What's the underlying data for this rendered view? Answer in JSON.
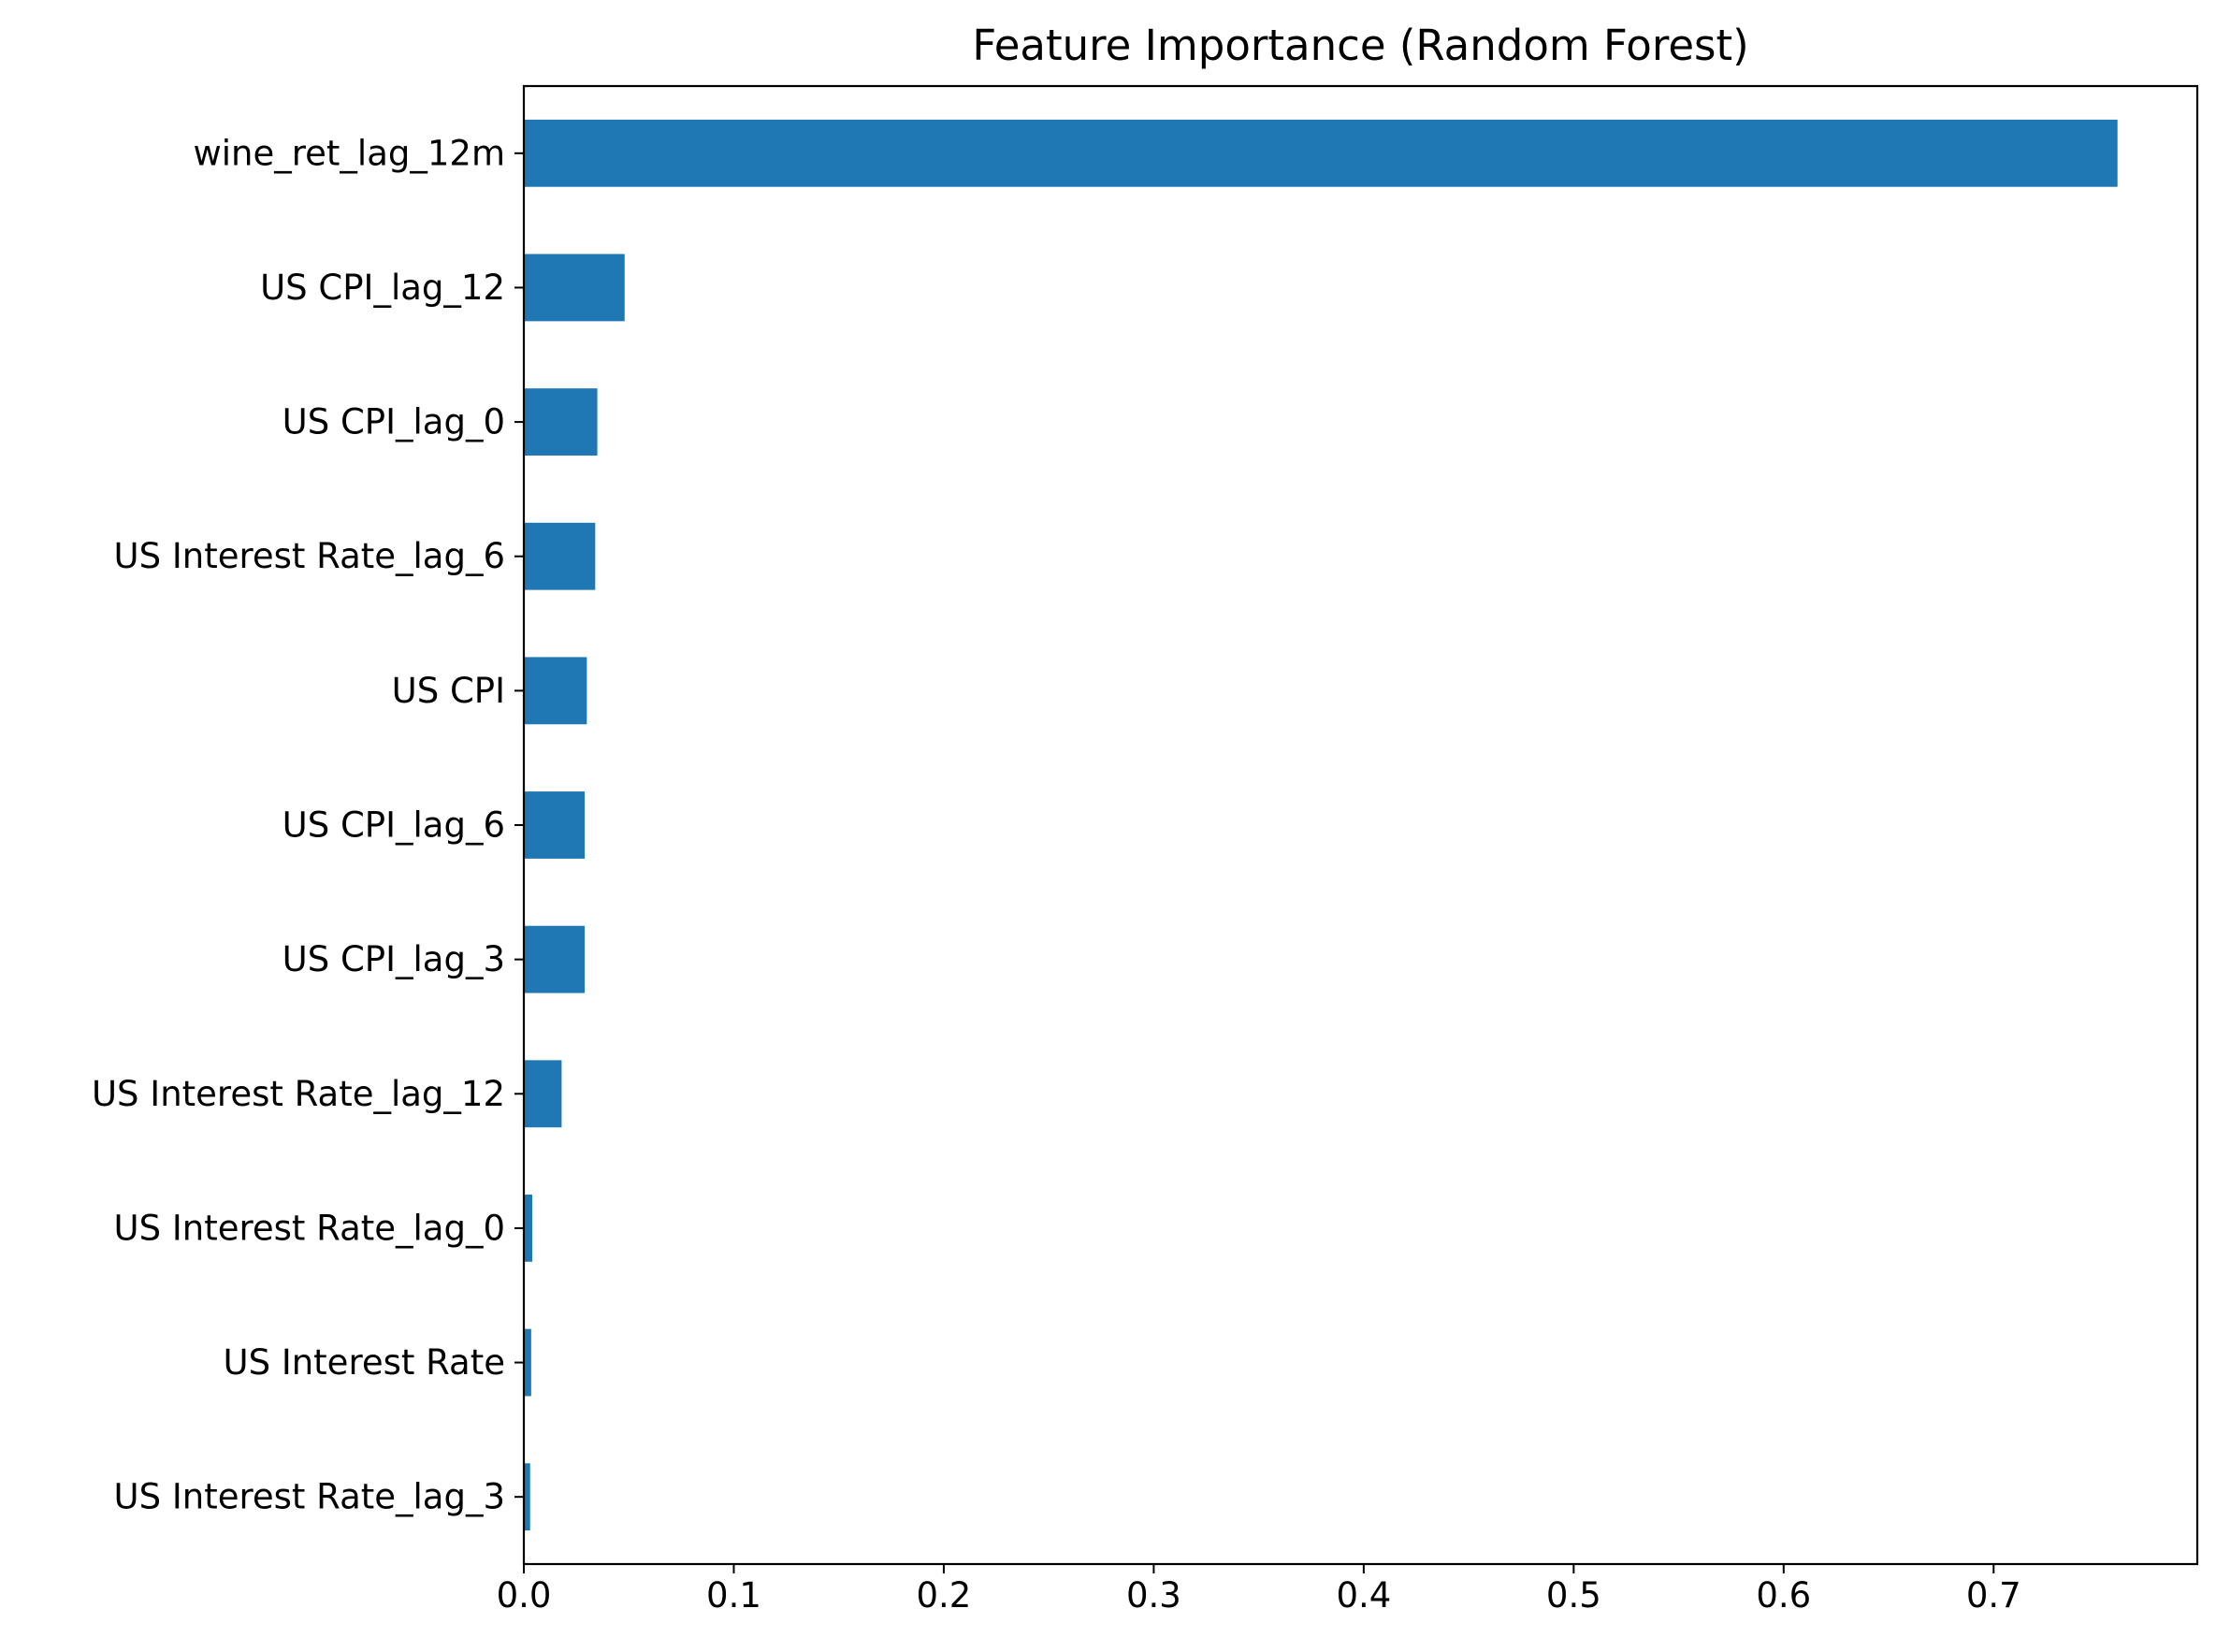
{
  "chart_data": {
    "type": "bar",
    "orientation": "horizontal",
    "title": "Feature Importance (Random Forest)",
    "xlabel": "",
    "ylabel": "",
    "categories": [
      "wine_ret_lag_12m",
      "US CPI_lag_12",
      "US CPI_lag_0",
      "US Interest Rate_lag_6",
      "US CPI",
      "US CPI_lag_6",
      "US CPI_lag_3",
      "US Interest Rate_lag_12",
      "US Interest Rate_lag_0",
      "US Interest Rate",
      "US Interest Rate_lag_3"
    ],
    "values": [
      0.759,
      0.048,
      0.035,
      0.034,
      0.03,
      0.029,
      0.029,
      0.018,
      0.004,
      0.0035,
      0.003
    ],
    "xlim": [
      0,
      0.797
    ],
    "xticks": [
      0.0,
      0.1,
      0.2,
      0.3,
      0.4,
      0.5,
      0.6,
      0.7
    ],
    "xtick_labels": [
      "0.0",
      "0.1",
      "0.2",
      "0.3",
      "0.4",
      "0.5",
      "0.6",
      "0.7"
    ],
    "grid": false,
    "legend": "none",
    "bar_color": "#1f77b4"
  }
}
